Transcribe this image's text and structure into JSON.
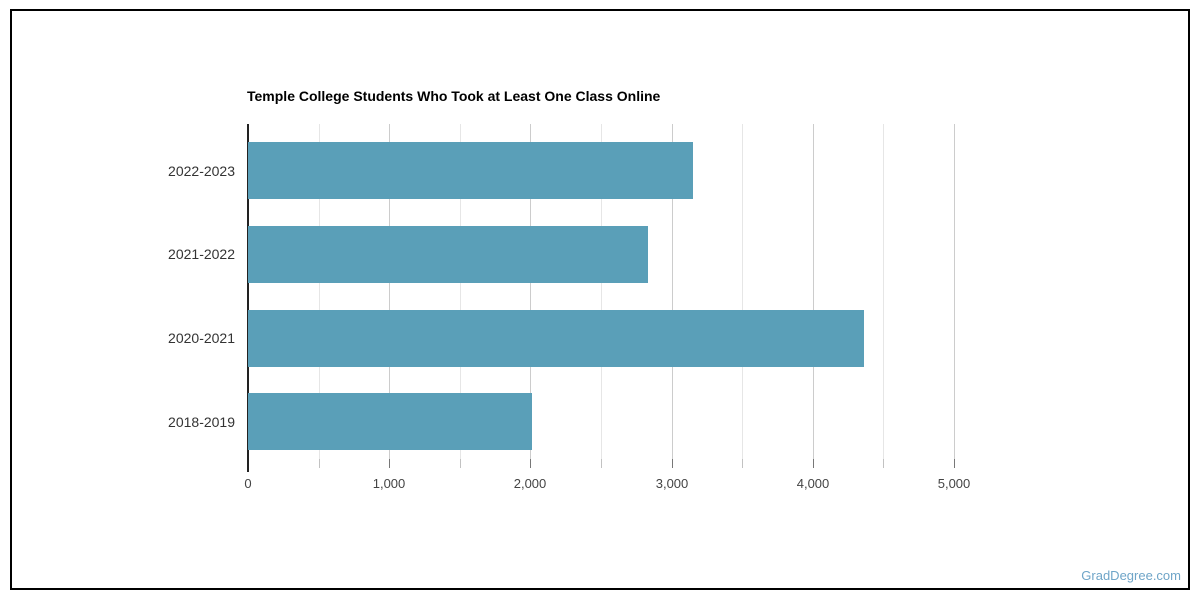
{
  "frame": {
    "watermark": "GradDegree.com",
    "watermark_color": "#6fa5c8"
  },
  "chart_data": {
    "type": "bar",
    "orientation": "horizontal",
    "title": "Temple College Students Who Took at Least One Class Online",
    "categories": [
      "2022-2023",
      "2021-2022",
      "2020-2021",
      "2018-2019"
    ],
    "values": [
      3150,
      2830,
      4360,
      2010
    ],
    "xlabel": "",
    "ylabel": "",
    "xlim": [
      0,
      5520
    ],
    "grid": true,
    "legend_position": "none",
    "major_ticks": [
      {
        "value": 0,
        "label": "0"
      },
      {
        "value": 1000,
        "label": "1,000"
      },
      {
        "value": 2000,
        "label": "2,000"
      },
      {
        "value": 3000,
        "label": "3,000"
      },
      {
        "value": 4000,
        "label": "4,000"
      },
      {
        "value": 5000,
        "label": "5,000"
      }
    ],
    "minor_ticks": [
      500,
      1500,
      2500,
      3500,
      4500
    ],
    "colors": {
      "bar": "#5a9fb8",
      "major_grid": "#cccccc",
      "minor_grid": "#e6e6e6",
      "baseline": "#222222",
      "major_tick": "#777777",
      "minor_tick": "#c2c2c2",
      "axis_label": "#444444",
      "category_label": "#333333",
      "title": "#000000"
    }
  }
}
